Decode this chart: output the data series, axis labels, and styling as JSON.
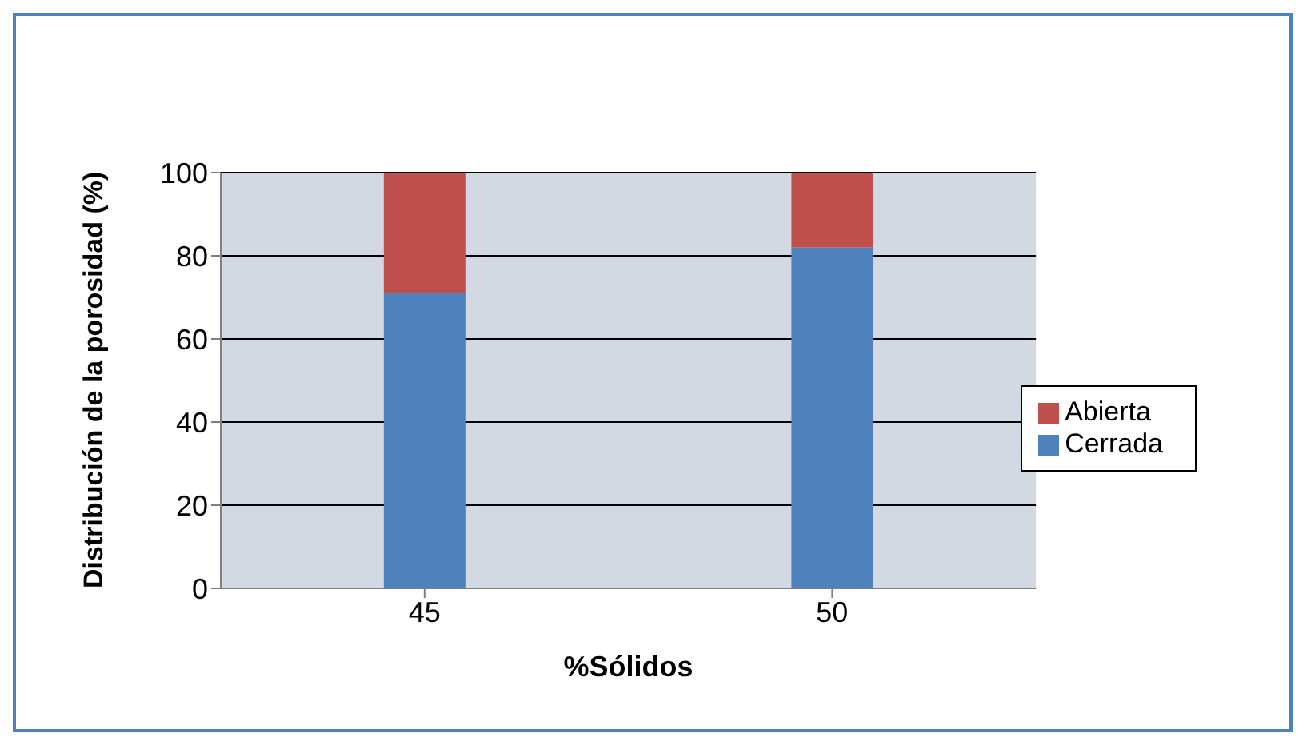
{
  "chart_data": {
    "type": "bar",
    "xlabel": "%Sólidos",
    "ylabel": "Distribución de la porosidad (%)",
    "categories": [
      "45",
      "50"
    ],
    "stacked": true,
    "series": [
      {
        "name": "Cerrada",
        "color": "#4f81bd",
        "values": [
          71,
          82
        ]
      },
      {
        "name": "Abierta",
        "color": "#c0504d",
        "values": [
          29,
          18
        ]
      }
    ],
    "ylim": [
      0,
      100
    ],
    "yticks": [
      0,
      20,
      40,
      60,
      80,
      100
    ],
    "grid": "y",
    "legend": "right"
  }
}
